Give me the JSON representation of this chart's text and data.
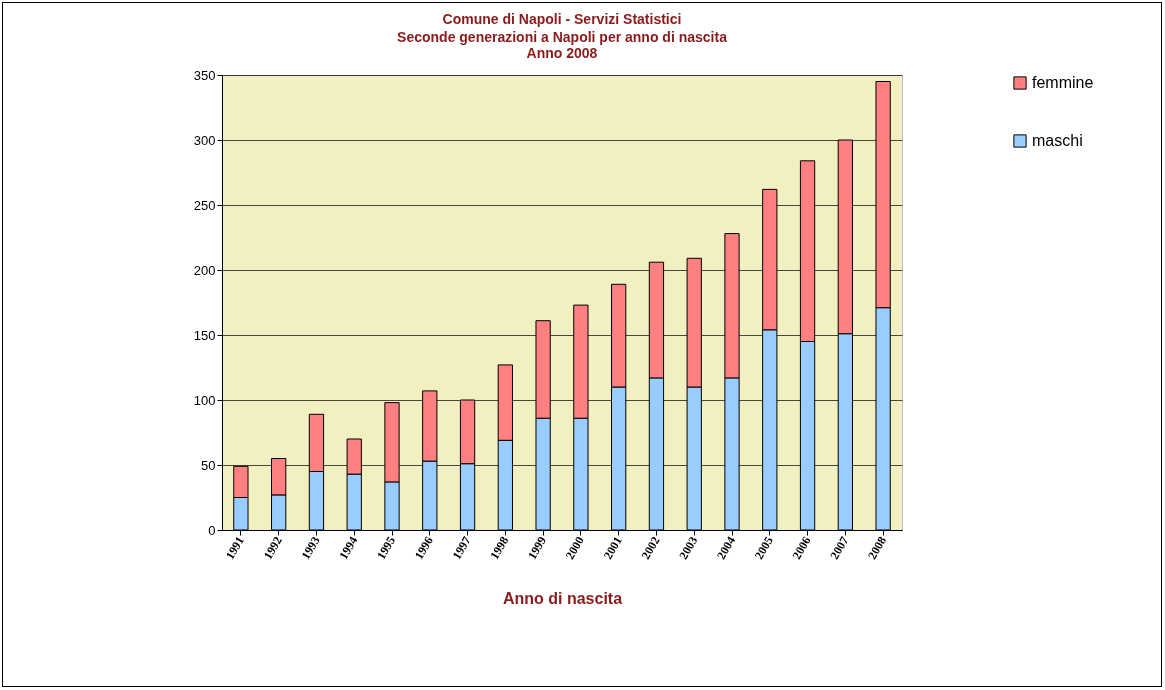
{
  "chart_data": {
    "type": "bar",
    "title": "Comune di Napoli - Servizi Statistici",
    "subtitle": "Seconde generazioni a Napoli per anno di nascita\nAnno 2008",
    "xlabel": "Anno di nascita",
    "stacked": true,
    "legend": "right",
    "grid": "y",
    "categories": [
      "1991",
      "1992",
      "1993",
      "1994",
      "1995",
      "1996",
      "1997",
      "1998",
      "1999",
      "2000",
      "2001",
      "2002",
      "2003",
      "2004",
      "2005",
      "2006",
      "2007",
      "2008"
    ],
    "series": [
      {
        "name": "maschi",
        "color": "#99ccff",
        "values": [
          25,
          27,
          45,
          43,
          37,
          53,
          51,
          69,
          86,
          86,
          110,
          117,
          110,
          117,
          154,
          145,
          151,
          171
        ]
      },
      {
        "name": "femmine",
        "color": "#ff8080",
        "values": [
          24,
          28,
          44,
          27,
          61,
          54,
          49,
          58,
          75,
          87,
          79,
          89,
          99,
          111,
          108,
          139,
          149,
          174
        ]
      }
    ],
    "ylim": [
      0,
      350
    ],
    "yticks": [
      0,
      50,
      100,
      150,
      200,
      250,
      300,
      350
    ]
  }
}
